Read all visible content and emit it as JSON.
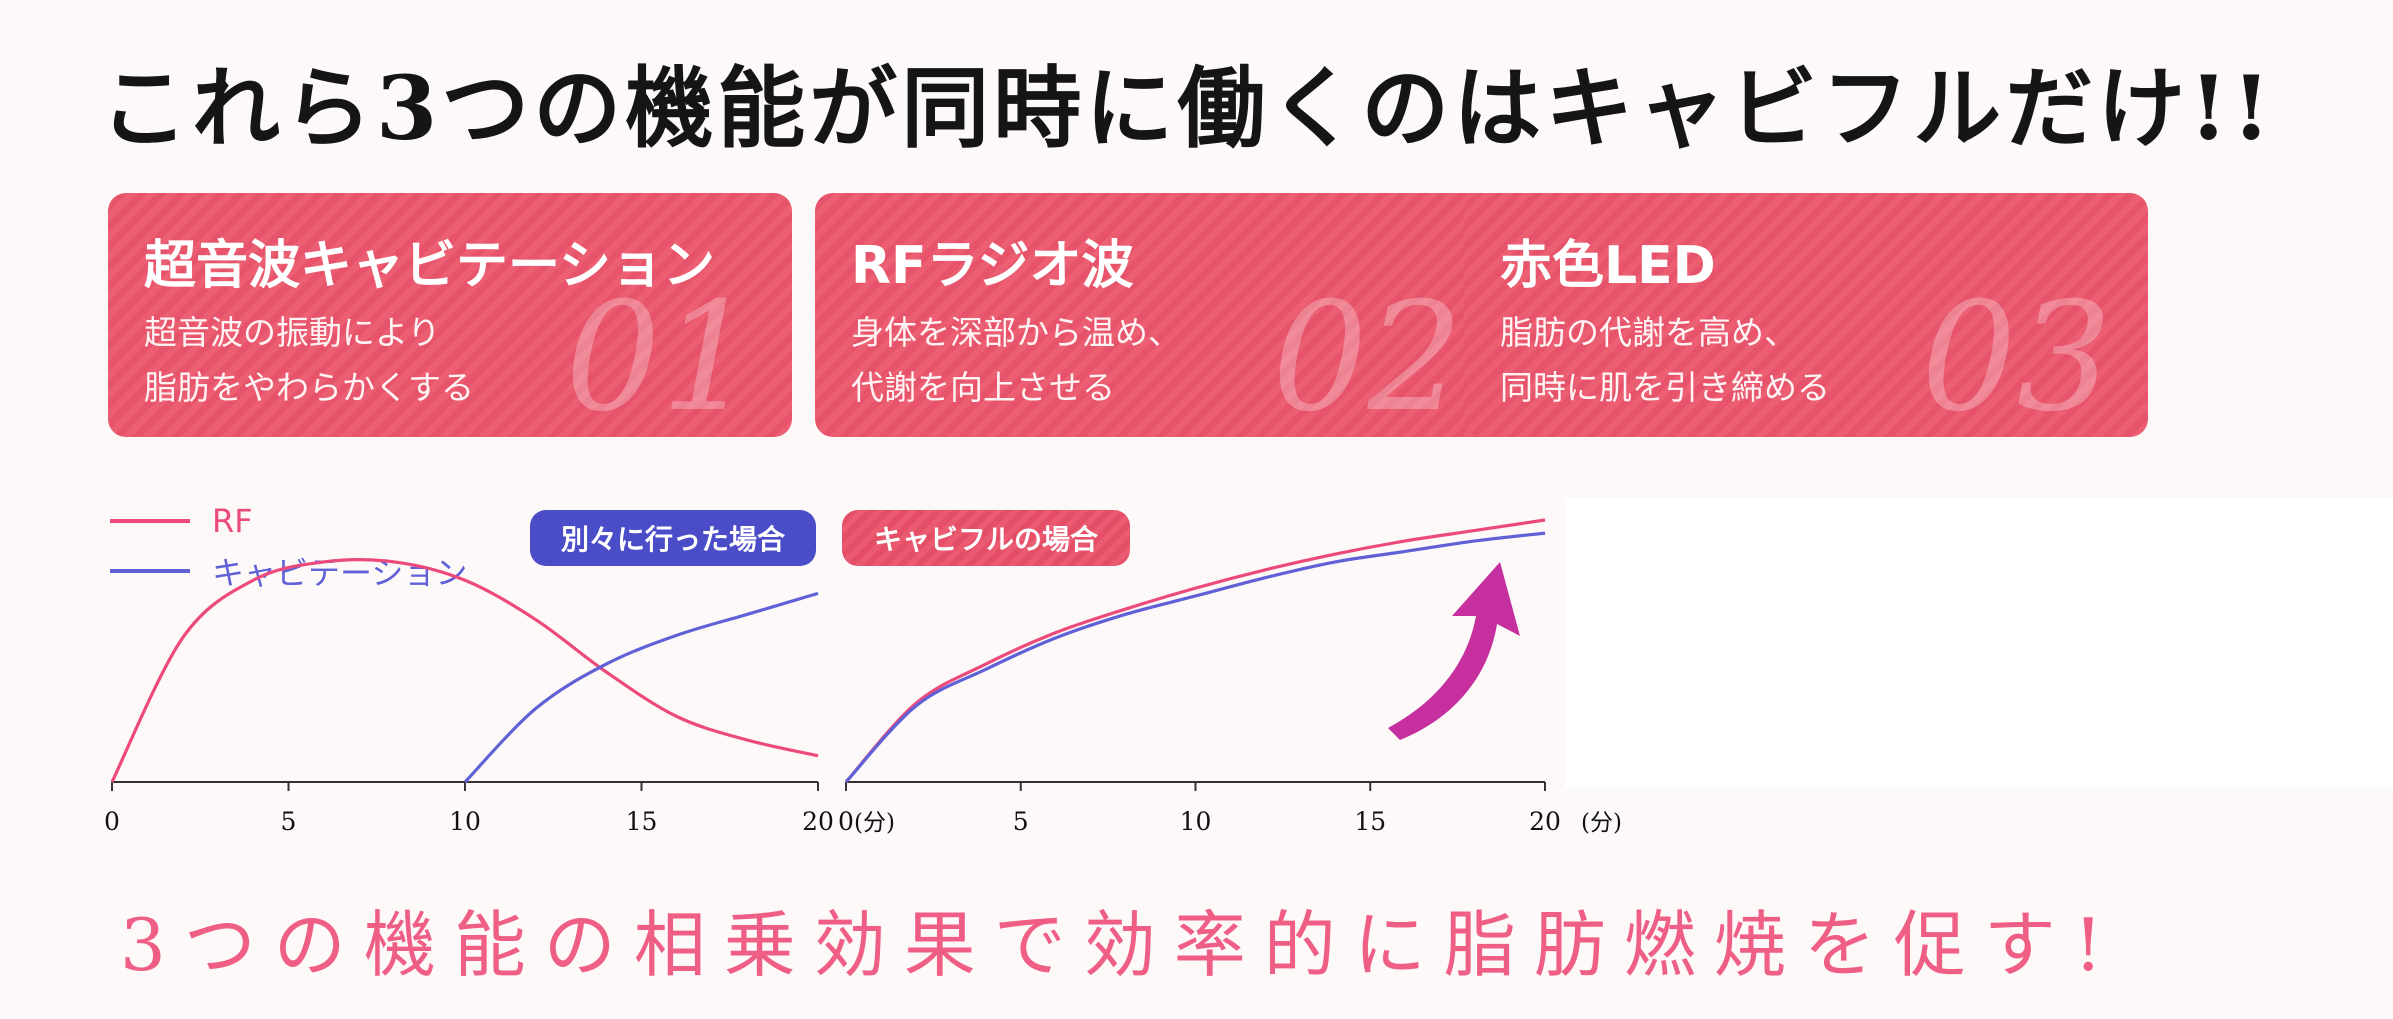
{
  "headline": "これら3つの機能が同時に働くのはキャビフルだけ!!",
  "features": [
    {
      "title": "超音波キャビテーション",
      "desc_line1": "超音波の振動により",
      "desc_line2": "脂肪をやわらかくする",
      "number": "01"
    },
    {
      "title": "RFラジオ波",
      "desc_line1": "身体を深部から温め、",
      "desc_line2": "代謝を向上させる",
      "number": "02"
    },
    {
      "title": "赤色LED",
      "desc_line1": "脂肪の代謝を高め、",
      "desc_line2": "同時に肌を引き締める",
      "number": "03"
    }
  ],
  "legend": {
    "rf": "RF",
    "cavitation": "キャビテーション"
  },
  "labels": {
    "separate": "別々に行った場合",
    "cavifull": "キャビフルの場合"
  },
  "footer": "3つの機能の相乗効果で効率的に脂肪燃焼を促す!",
  "colors": {
    "rf": "#ec4a7a",
    "cavitation": "#6061d6",
    "card": "#e9596e",
    "pill_blue": "#4a4cc8",
    "pill_pink": "#e9546c",
    "arrow": "#c6309e"
  },
  "chart_data": [
    {
      "type": "line",
      "title": "別々に行った場合",
      "xlabel": "",
      "ylabel": "",
      "x_unit": "(分)",
      "xlim": [
        0,
        20
      ],
      "xticks": [
        0,
        5,
        10,
        15,
        20
      ],
      "ylim": [
        0,
        1
      ],
      "series": [
        {
          "name": "RF",
          "color": "#ec4a7a",
          "x": [
            0,
            2,
            4,
            6,
            8,
            10,
            12,
            14,
            16,
            18,
            20
          ],
          "y": [
            0.0,
            0.55,
            0.77,
            0.84,
            0.84,
            0.77,
            0.62,
            0.42,
            0.25,
            0.16,
            0.1
          ]
        },
        {
          "name": "キャビテーション",
          "color": "#6061d6",
          "x": [
            10,
            12,
            14,
            16,
            18,
            20
          ],
          "y": [
            0.0,
            0.28,
            0.45,
            0.56,
            0.64,
            0.72
          ]
        }
      ]
    },
    {
      "type": "line",
      "title": "キャビフルの場合",
      "xlabel": "",
      "ylabel": "",
      "x_unit": "(分)",
      "xlim": [
        0,
        20
      ],
      "xticks": [
        0,
        5,
        10,
        15,
        20
      ],
      "ylim": [
        0,
        1
      ],
      "series": [
        {
          "name": "RF",
          "color": "#ec4a7a",
          "x": [
            0,
            2,
            4,
            6,
            8,
            10,
            12,
            14,
            16,
            18,
            20
          ],
          "y": [
            0.0,
            0.3,
            0.45,
            0.57,
            0.66,
            0.74,
            0.81,
            0.87,
            0.92,
            0.96,
            1.0
          ]
        },
        {
          "name": "キャビテーション",
          "color": "#6061d6",
          "x": [
            0,
            2,
            4,
            6,
            8,
            10,
            12,
            14,
            16,
            18,
            20
          ],
          "y": [
            0.0,
            0.29,
            0.43,
            0.55,
            0.64,
            0.71,
            0.78,
            0.84,
            0.88,
            0.92,
            0.95
          ]
        }
      ]
    }
  ]
}
